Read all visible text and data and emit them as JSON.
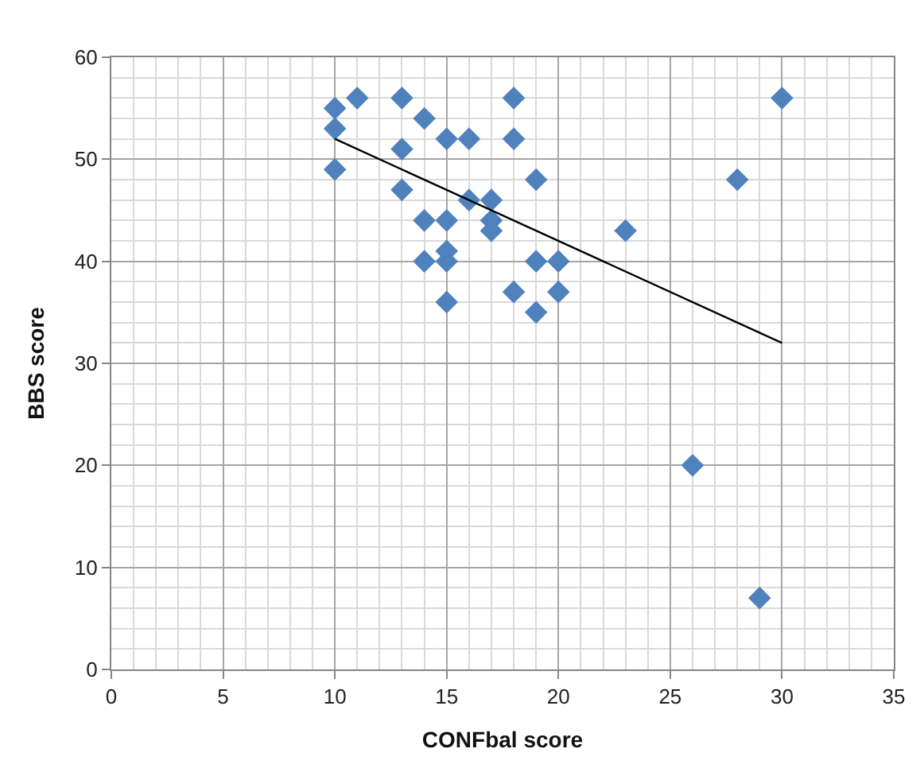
{
  "chart_data": {
    "type": "scatter",
    "xlabel": "CONFbal score",
    "ylabel": "BBS score",
    "xlim": [
      0,
      35
    ],
    "xticks": [
      0,
      5,
      10,
      15,
      20,
      25,
      30,
      35
    ],
    "ylim": [
      0,
      60
    ],
    "yticks": [
      0,
      10,
      20,
      30,
      40,
      50,
      60
    ],
    "grid": true,
    "marker": "diamond",
    "series": [
      {
        "color": "#4f81bd",
        "x": [
          10,
          10,
          10,
          11,
          13,
          13,
          13,
          14,
          14,
          14,
          15,
          15,
          15,
          15,
          15,
          16,
          16,
          17,
          17,
          17,
          18,
          18,
          18,
          19,
          19,
          19,
          20,
          20,
          23,
          26,
          28,
          29,
          30
        ],
        "values": [
          55,
          53,
          49,
          56,
          56,
          51,
          47,
          54,
          44,
          40,
          52,
          44,
          41,
          40,
          36,
          52,
          46,
          46,
          44,
          43,
          56,
          52,
          37,
          48,
          40,
          35,
          40,
          37,
          43,
          20,
          48,
          7,
          56
        ]
      },
      {
        "type": "line",
        "color": "#000000",
        "x": [
          10,
          30
        ],
        "values": [
          52,
          32
        ],
        "marker": "none",
        "line_style": "solid"
      }
    ]
  }
}
